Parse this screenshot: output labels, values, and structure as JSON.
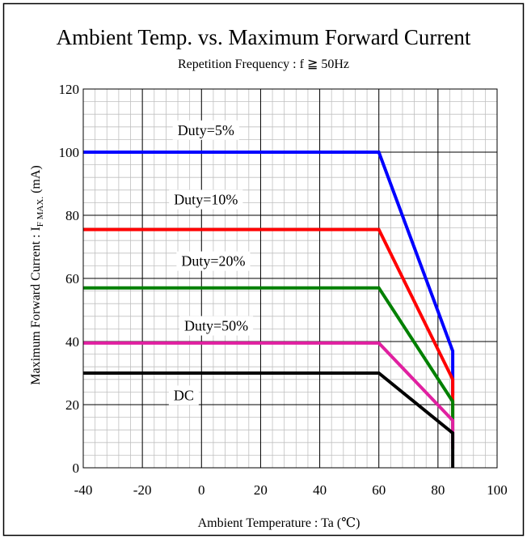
{
  "chart_data": {
    "type": "line",
    "title": "Ambient Temp. vs. Maximum Forward Current",
    "subtitle": "Repetition Frequency : f ≧ 50Hz",
    "xlabel": "Ambient Temperature : Ta (℃)",
    "ylabel_main": "Maximum Forward Current : I",
    "ylabel_sub": "F MAX.",
    "ylabel_unit": " (mA)",
    "xlim": [
      -40,
      100
    ],
    "ylim": [
      0,
      120
    ],
    "x_ticks": [
      -40,
      -20,
      0,
      20,
      40,
      60,
      80,
      100
    ],
    "y_ticks": [
      0,
      20,
      40,
      60,
      80,
      100,
      120
    ],
    "x_tick_labels": [
      "-40",
      "-20",
      "0",
      "20",
      "40",
      "60",
      "80",
      "100"
    ],
    "y_tick_labels": [
      "0",
      "20",
      "40",
      "60",
      "80",
      "100",
      "120"
    ],
    "grid": true,
    "series": [
      {
        "name": "Duty=5%",
        "color": "#0000ff",
        "label_x": 1.5,
        "label_y": 106.5,
        "points": [
          [
            -40,
            100
          ],
          [
            60,
            100
          ],
          [
            85,
            37
          ],
          [
            85,
            23
          ]
        ]
      },
      {
        "name": "Duty=10%",
        "color": "#ff0000",
        "label_x": 1.5,
        "label_y": 84.5,
        "points": [
          [
            -40,
            75.5
          ],
          [
            60,
            75.5
          ],
          [
            85,
            28
          ],
          [
            85,
            16
          ]
        ]
      },
      {
        "name": "Duty=20%",
        "color": "#008000",
        "label_x": 4,
        "label_y": 65,
        "points": [
          [
            -40,
            57
          ],
          [
            60,
            57
          ],
          [
            85,
            21
          ],
          [
            85,
            12
          ]
        ]
      },
      {
        "name": "Duty=50%",
        "color": "#e020a0",
        "label_x": 5,
        "label_y": 44.5,
        "points": [
          [
            -40,
            39.5
          ],
          [
            60,
            39.5
          ],
          [
            85,
            15
          ],
          [
            85,
            6
          ]
        ]
      },
      {
        "name": "DC",
        "color": "#000000",
        "label_x": -6,
        "label_y": 22.5,
        "points": [
          [
            -40,
            30
          ],
          [
            60,
            30
          ],
          [
            85,
            11
          ],
          [
            85,
            0
          ]
        ]
      }
    ]
  }
}
